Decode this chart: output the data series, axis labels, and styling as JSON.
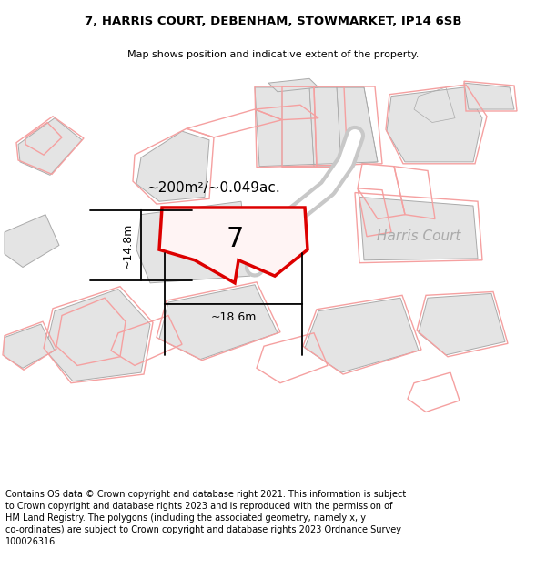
{
  "title_line1": "7, HARRIS COURT, DEBENHAM, STOWMARKET, IP14 6SB",
  "title_line2": "Map shows position and indicative extent of the property.",
  "footer": "Contains OS data © Crown copyright and database right 2021. This information is subject\nto Crown copyright and database rights 2023 and is reproduced with the permission of\nHM Land Registry. The polygons (including the associated geometry, namely x, y\nco-ordinates) are subject to Crown copyright and database rights 2023 Ordnance Survey\n100026316.",
  "harris_court_label": "Harris Court",
  "area_label": "~200m²/~0.049ac.",
  "width_label": "~18.6m",
  "height_label": "~14.8m",
  "number_label": "7",
  "map_bg": "#ffffff",
  "main_poly_red": "#dd0000",
  "neighbor_pink": "#f5a0a0",
  "gray_fill": "#e4e4e4",
  "gray_edge": "#aaaaaa",
  "road_gray": "#c8c8c8",
  "harris_court_color": "#aaaaaa",
  "title_fs": 9.5,
  "subtitle_fs": 8.0,
  "footer_fs": 7.0
}
